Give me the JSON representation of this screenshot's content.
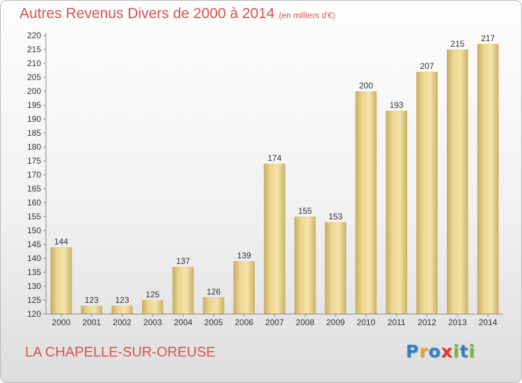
{
  "header": {
    "title": "Autres Revenus Divers de 2000 à 2014",
    "unit": "(en milliers d'€)"
  },
  "footer": {
    "location": "LA CHAPELLE-SUR-OREUSE",
    "brand": "Proxiti",
    "brand_letters": [
      {
        "char": "P",
        "color": "#2e7fc3"
      },
      {
        "char": "r",
        "color": "#f0a21e"
      },
      {
        "char": "o",
        "color": "#2e7fc3"
      },
      {
        "char": "x",
        "color": "#e4342b"
      },
      {
        "char": "i",
        "color": "#7bb33d"
      },
      {
        "char": "t",
        "color": "#2e7fc3"
      },
      {
        "char": "i",
        "color": "#7bb33d"
      }
    ]
  },
  "chart_data": {
    "type": "bar",
    "title": "Autres Revenus Divers de 2000 à 2014",
    "subtitle": "(en milliers d'€)",
    "xlabel": "",
    "ylabel": "",
    "categories": [
      "2000",
      "2001",
      "2002",
      "2003",
      "2004",
      "2005",
      "2006",
      "2007",
      "2008",
      "2009",
      "2010",
      "2011",
      "2012",
      "2013",
      "2014"
    ],
    "values": [
      144,
      123,
      123,
      125,
      137,
      126,
      139,
      174,
      155,
      153,
      200,
      193,
      207,
      215,
      217
    ],
    "ylim": [
      120,
      220
    ],
    "ytick_step": 5,
    "grid": false,
    "legend": "none",
    "bar_color": "#e6cf8a",
    "axis_color": "#888888",
    "label_color": "#333333"
  }
}
